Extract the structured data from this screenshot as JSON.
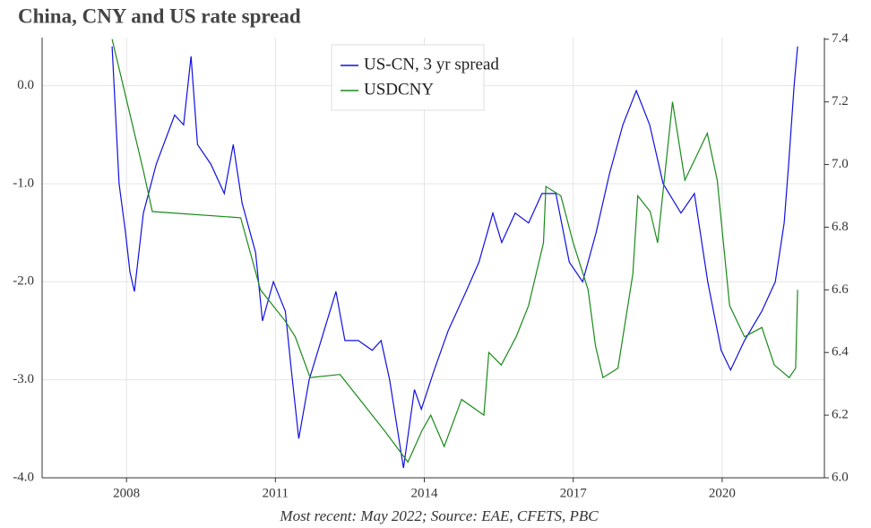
{
  "chart_data": {
    "type": "line",
    "title": "China, CNY and US rate spread",
    "footnote": "Most recent: May 2022; Source: EAE, CFETS, PBC",
    "grid": true,
    "legend": "top",
    "xlim": [
      2006.3,
      2022.06
    ],
    "xticks": [
      2008,
      2011,
      2014,
      2017,
      2020
    ],
    "ylim": [
      -4,
      0.49
    ],
    "yticks": [
      {
        "value": -4,
        "label": "-4.0"
      },
      {
        "value": -3,
        "label": "-3.0"
      },
      {
        "value": -2,
        "label": "-2.0"
      },
      {
        "value": -1,
        "label": "-1.0"
      },
      {
        "value": 0,
        "label": "0.0"
      }
    ],
    "y2lim": [
      6.0,
      7.405
    ],
    "y2ticks": [
      {
        "value": 6.0,
        "label": "6.0"
      },
      6.2,
      6.4,
      6.6,
      6.8,
      {
        "value": 7.0,
        "label": "7.0"
      },
      7.2,
      7.4
    ],
    "series": [
      {
        "name": "US-CN, 3 yr spread",
        "color": "#1010e0",
        "x": [
          2007.71,
          2007.85,
          2007.98,
          2008.07,
          2008.16,
          2008.34,
          2008.6,
          2008.97,
          2009.15,
          2009.3,
          2009.43,
          2009.7,
          2009.97,
          2010.15,
          2010.33,
          2010.6,
          2010.74,
          2010.96,
          2011.2,
          2011.32,
          2011.47,
          2011.68,
          2011.86,
          2012.22,
          2012.4,
          2012.67,
          2012.95,
          2013.13,
          2013.3,
          2013.58,
          2013.8,
          2013.94,
          2014.2,
          2014.48,
          2014.84,
          2015.1,
          2015.38,
          2015.56,
          2015.83,
          2016.1,
          2016.37,
          2016.65,
          2016.92,
          2017.19,
          2017.46,
          2017.73,
          2018.0,
          2018.27,
          2018.54,
          2018.81,
          2019.17,
          2019.44,
          2019.71,
          2019.98,
          2020.17,
          2020.45,
          2020.8,
          2021.07,
          2021.25,
          2021.34,
          2021.45,
          2021.52
        ],
        "values": [
          0.4,
          -1.0,
          -1.5,
          -1.9,
          -2.1,
          -1.3,
          -0.8,
          -0.3,
          -0.4,
          0.3,
          -0.6,
          -0.8,
          -1.1,
          -0.6,
          -1.2,
          -1.7,
          -2.4,
          -2.0,
          -2.3,
          -2.9,
          -3.6,
          -3.0,
          -2.7,
          -2.1,
          -2.6,
          -2.6,
          -2.7,
          -2.6,
          -3.0,
          -3.9,
          -3.1,
          -3.3,
          -2.9,
          -2.5,
          -2.1,
          -1.8,
          -1.3,
          -1.6,
          -1.3,
          -1.4,
          -1.1,
          -1.1,
          -1.8,
          -2.0,
          -1.5,
          -0.9,
          -0.4,
          -0.05,
          -0.4,
          -1.0,
          -1.3,
          -1.1,
          -2.0,
          -2.7,
          -2.9,
          -2.6,
          -2.3,
          -2.0,
          -1.4,
          -0.8,
          0.0,
          0.4
        ]
      },
      {
        "name": "USDCNY",
        "color": "#1a8a1a",
        "axis": "y2",
        "x": [
          2007.71,
          2008.34,
          2008.52,
          2010.3,
          2010.7,
          2011.2,
          2011.4,
          2011.7,
          2012.3,
          2012.85,
          2013.2,
          2013.67,
          2013.95,
          2014.13,
          2014.4,
          2014.75,
          2015.2,
          2015.3,
          2015.55,
          2015.85,
          2016.1,
          2016.4,
          2016.45,
          2016.75,
          2017.0,
          2017.3,
          2017.45,
          2017.6,
          2017.9,
          2018.2,
          2018.3,
          2018.55,
          2018.7,
          2019.0,
          2019.25,
          2019.55,
          2019.7,
          2019.9,
          2020.15,
          2020.45,
          2020.8,
          2021.05,
          2021.35,
          2021.48,
          2021.52
        ],
        "values": [
          7.4,
          6.98,
          6.85,
          6.83,
          6.6,
          6.5,
          6.45,
          6.32,
          6.33,
          6.22,
          6.15,
          6.05,
          6.15,
          6.2,
          6.1,
          6.25,
          6.2,
          6.4,
          6.36,
          6.45,
          6.55,
          6.75,
          6.93,
          6.9,
          6.75,
          6.6,
          6.42,
          6.32,
          6.35,
          6.65,
          6.9,
          6.85,
          6.75,
          7.2,
          6.95,
          7.05,
          7.1,
          6.95,
          6.55,
          6.45,
          6.48,
          6.36,
          6.32,
          6.35,
          6.6
        ]
      }
    ]
  }
}
